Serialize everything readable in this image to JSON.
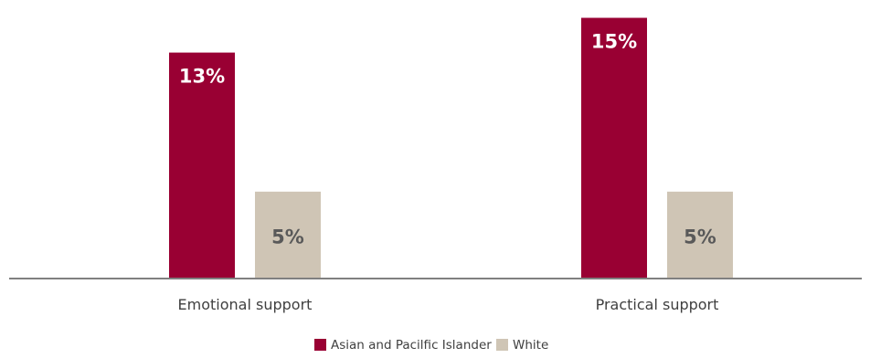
{
  "chart_data": {
    "type": "bar",
    "title": "",
    "xlabel": "",
    "ylabel": "",
    "categories": [
      "Emotional support",
      "Practical support"
    ],
    "series": [
      {
        "name": "Asian and Pacilfic Islander",
        "values": [
          13,
          15
        ],
        "labels": [
          "13%",
          "15%"
        ],
        "color": "#990033",
        "label_color": "#ffffff"
      },
      {
        "name": "White",
        "values": [
          5,
          5
        ],
        "labels": [
          "5%",
          "5%"
        ],
        "color": "#cfc5b5",
        "label_color": "#595959"
      }
    ],
    "unit": "%",
    "ylim": [
      0,
      15.5
    ],
    "grid": false,
    "legend": "bottom-center",
    "axis_color": "#808080"
  }
}
